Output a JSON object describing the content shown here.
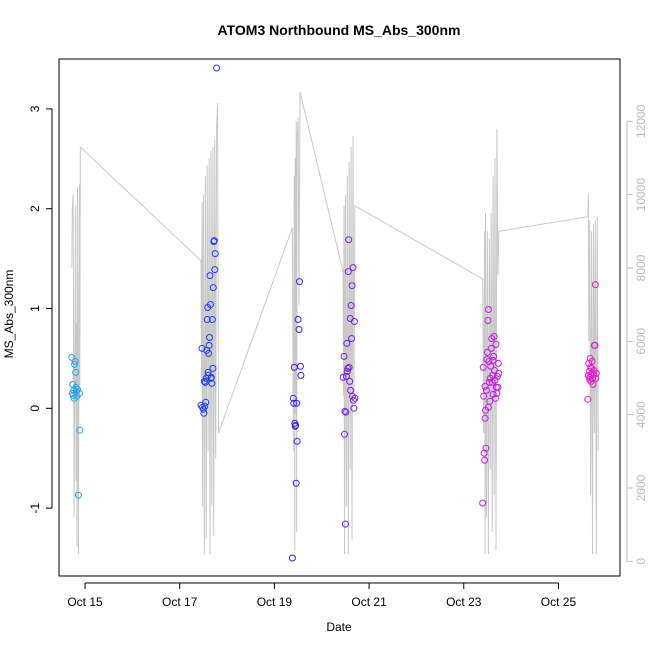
{
  "chart_data": {
    "type": "scatter",
    "title": "ATOM3 Northbound MS_Abs_300nm",
    "xlabel": "Date",
    "ylabel": "MS_Abs_300nm",
    "x_ticks": [
      {
        "day": 15,
        "label": "Oct 15"
      },
      {
        "day": 17,
        "label": "Oct 17"
      },
      {
        "day": 19,
        "label": "Oct 19"
      },
      {
        "day": 21,
        "label": "Oct 21"
      },
      {
        "day": 23,
        "label": "Oct 23"
      },
      {
        "day": 25,
        "label": "Oct 25"
      }
    ],
    "xlim": [
      14.45,
      26.3
    ],
    "ylim": [
      -1.68,
      3.5
    ],
    "y_ticks": [
      -1,
      0,
      1,
      2,
      3
    ],
    "y2_ticks": [
      0,
      2000,
      4000,
      6000,
      8000,
      10000,
      12000
    ],
    "y2lim": [
      -400,
      13700
    ],
    "colors": {
      "axis": "#000000",
      "secondary": "#c8c8c8",
      "secondary_axis": "#bbbbbb"
    },
    "secondary_series": {
      "name": "",
      "style": "line",
      "color": "#c8c8c8",
      "points": [
        [
          14.72,
          8000
        ],
        [
          14.73,
          9600
        ],
        [
          14.75,
          10000
        ],
        [
          14.77,
          1200
        ],
        [
          14.78,
          4500
        ],
        [
          14.8,
          9700
        ],
        [
          14.81,
          2200
        ],
        [
          14.82,
          6500
        ],
        [
          14.83,
          400
        ],
        [
          14.84,
          10200
        ],
        [
          14.85,
          5800
        ],
        [
          14.86,
          200
        ],
        [
          14.88,
          10300
        ],
        [
          14.89,
          4800
        ],
        [
          14.9,
          11300
        ],
        [
          17.45,
          8200
        ],
        [
          17.46,
          5000
        ],
        [
          17.47,
          9800
        ],
        [
          17.48,
          1500
        ],
        [
          17.5,
          10000
        ],
        [
          17.52,
          200
        ],
        [
          17.54,
          10500
        ],
        [
          17.56,
          600
        ],
        [
          17.58,
          10800
        ],
        [
          17.6,
          3000
        ],
        [
          17.62,
          11000
        ],
        [
          17.64,
          200
        ],
        [
          17.66,
          11200
        ],
        [
          17.68,
          1500
        ],
        [
          17.7,
          11300
        ],
        [
          17.72,
          700
        ],
        [
          17.74,
          11500
        ],
        [
          17.76,
          2800
        ],
        [
          17.78,
          11800
        ],
        [
          17.8,
          12500
        ],
        [
          17.82,
          3500
        ],
        [
          19.38,
          9100
        ],
        [
          19.4,
          3000
        ],
        [
          19.42,
          10500
        ],
        [
          19.43,
          300
        ],
        [
          19.44,
          11000
        ],
        [
          19.45,
          4000
        ],
        [
          19.46,
          12000
        ],
        [
          19.47,
          800
        ],
        [
          19.48,
          11500
        ],
        [
          19.5,
          12100
        ],
        [
          19.52,
          7000
        ],
        [
          19.54,
          12800
        ],
        [
          20.45,
          7900
        ],
        [
          20.46,
          4500
        ],
        [
          20.47,
          9700
        ],
        [
          20.48,
          200
        ],
        [
          20.5,
          10000
        ],
        [
          20.52,
          1500
        ],
        [
          20.54,
          10500
        ],
        [
          20.56,
          200
        ],
        [
          20.58,
          10900
        ],
        [
          20.6,
          2500
        ],
        [
          20.62,
          11300
        ],
        [
          20.64,
          600
        ],
        [
          20.66,
          11600
        ],
        [
          20.68,
          4500
        ],
        [
          20.7,
          9700
        ],
        [
          23.4,
          7700
        ],
        [
          23.42,
          3500
        ],
        [
          23.44,
          9000
        ],
        [
          23.45,
          200
        ],
        [
          23.46,
          9500
        ],
        [
          23.48,
          1200
        ],
        [
          23.5,
          9000
        ],
        [
          23.52,
          200
        ],
        [
          23.54,
          8800
        ],
        [
          23.56,
          2500
        ],
        [
          23.58,
          9500
        ],
        [
          23.6,
          800
        ],
        [
          23.62,
          10500
        ],
        [
          23.64,
          1800
        ],
        [
          23.66,
          11000
        ],
        [
          23.68,
          300
        ],
        [
          23.7,
          11800
        ],
        [
          23.72,
          7800
        ],
        [
          23.74,
          9000
        ],
        [
          25.62,
          9400
        ],
        [
          25.63,
          10000
        ],
        [
          25.64,
          6000
        ],
        [
          25.66,
          9300
        ],
        [
          25.68,
          1800
        ],
        [
          25.7,
          9000
        ],
        [
          25.72,
          200
        ],
        [
          25.74,
          9200
        ],
        [
          25.76,
          3500
        ],
        [
          25.78,
          9300
        ],
        [
          25.8,
          200
        ],
        [
          25.82,
          9400
        ],
        [
          25.84,
          3000
        ]
      ]
    },
    "series": [
      {
        "color": "#29a3e8",
        "points": [
          [
            14.72,
            0.51
          ],
          [
            14.73,
            0.15
          ],
          [
            14.74,
            0.24
          ],
          [
            14.75,
            0.13
          ],
          [
            14.76,
            0.18
          ],
          [
            14.77,
            0.1
          ],
          [
            14.78,
            0.44
          ],
          [
            14.79,
            0.47
          ],
          [
            14.8,
            0.36
          ],
          [
            14.81,
            0.21
          ],
          [
            14.82,
            0.17
          ],
          [
            14.83,
            0.12
          ],
          [
            14.84,
            0.19
          ],
          [
            14.86,
            -0.87
          ],
          [
            14.89,
            -0.22
          ],
          [
            14.88,
            0.15
          ]
        ]
      },
      {
        "color": "#2340e6",
        "points": [
          [
            17.45,
            0.03
          ],
          [
            17.47,
            0.6
          ],
          [
            17.48,
            0.01
          ],
          [
            17.5,
            -0.01
          ],
          [
            17.51,
            -0.05
          ],
          [
            17.52,
            0.27
          ],
          [
            17.53,
            0.02
          ],
          [
            17.54,
            0.26
          ],
          [
            17.55,
            0.06
          ],
          [
            17.57,
            0.58
          ],
          [
            17.58,
            0.89
          ],
          [
            17.59,
            1.01
          ],
          [
            17.6,
            0.33
          ],
          [
            17.61,
            0.55
          ],
          [
            17.62,
            0.63
          ],
          [
            17.63,
            0.71
          ],
          [
            17.64,
            1.33
          ],
          [
            17.65,
            1.04
          ],
          [
            17.66,
            0.3
          ],
          [
            17.67,
            0.31
          ],
          [
            17.68,
            0.25
          ],
          [
            17.69,
            0.89
          ],
          [
            17.7,
            0.4
          ],
          [
            17.71,
            1.21
          ],
          [
            17.72,
            1.67
          ],
          [
            17.73,
            1.68
          ],
          [
            17.74,
            1.39
          ],
          [
            17.75,
            1.55
          ],
          [
            17.78,
            3.41
          ],
          [
            17.6,
            0.36
          ],
          [
            17.56,
            0.3
          ]
        ]
      },
      {
        "color": "#3a22e0",
        "points": [
          [
            19.38,
            -1.5
          ],
          [
            19.4,
            0.1
          ],
          [
            19.41,
            0.05
          ],
          [
            19.42,
            0.41
          ],
          [
            19.43,
            -0.15
          ],
          [
            19.44,
            -0.18
          ],
          [
            19.45,
            -0.17
          ],
          [
            19.46,
            -0.75
          ],
          [
            19.47,
            0.05
          ],
          [
            19.48,
            -0.33
          ],
          [
            19.5,
            0.89
          ],
          [
            19.52,
            0.79
          ],
          [
            19.53,
            1.27
          ],
          [
            19.55,
            0.42
          ],
          [
            19.56,
            0.33
          ]
        ]
      },
      {
        "color": "#7a22dc",
        "points": [
          [
            20.45,
            0.31
          ],
          [
            20.47,
            0.52
          ],
          [
            20.48,
            -0.26
          ],
          [
            20.49,
            -0.03
          ],
          [
            20.5,
            -1.16
          ],
          [
            20.51,
            -0.04
          ],
          [
            20.52,
            0.32
          ],
          [
            20.53,
            0.65
          ],
          [
            20.54,
            0.37
          ],
          [
            20.55,
            0.4
          ],
          [
            20.56,
            1.37
          ],
          [
            20.57,
            1.69
          ],
          [
            20.58,
            0.41
          ],
          [
            20.59,
            0.27
          ],
          [
            20.6,
            0.9
          ],
          [
            20.61,
            0.18
          ],
          [
            20.62,
            1.03
          ],
          [
            20.63,
            0.7
          ],
          [
            20.64,
            1.23
          ],
          [
            20.65,
            0.12
          ],
          [
            20.66,
            1.41
          ],
          [
            20.67,
            0.08
          ],
          [
            20.68,
            0.0
          ],
          [
            20.69,
            0.87
          ],
          [
            20.7,
            0.1
          ]
        ]
      },
      {
        "color": "#c21ee0",
        "points": [
          [
            23.4,
            -0.95
          ],
          [
            23.41,
            0.41
          ],
          [
            23.42,
            0.12
          ],
          [
            23.43,
            -0.45
          ],
          [
            23.44,
            -0.52
          ],
          [
            23.45,
            -0.1
          ],
          [
            23.46,
            -0.02
          ],
          [
            23.47,
            -0.4
          ],
          [
            23.48,
            0.18
          ],
          [
            23.49,
            0.49
          ],
          [
            23.5,
            0.56
          ],
          [
            23.51,
            0.88
          ],
          [
            23.52,
            0.99
          ],
          [
            23.53,
            0.47
          ],
          [
            23.54,
            0.26
          ],
          [
            23.55,
            0.07
          ],
          [
            23.56,
            0.3
          ],
          [
            23.57,
            0.42
          ],
          [
            23.58,
            0.6
          ],
          [
            23.59,
            0.7
          ],
          [
            23.6,
            0.26
          ],
          [
            23.61,
            0.33
          ],
          [
            23.62,
            0.14
          ],
          [
            23.63,
            0.52
          ],
          [
            23.64,
            0.72
          ],
          [
            23.65,
            0.38
          ],
          [
            23.66,
            0.28
          ],
          [
            23.67,
            0.1
          ],
          [
            23.68,
            0.64
          ],
          [
            23.69,
            0.21
          ],
          [
            23.7,
            0.15
          ],
          [
            23.71,
            0.32
          ],
          [
            23.72,
            0.21
          ],
          [
            23.73,
            0.45
          ],
          [
            23.74,
            0.35
          ],
          [
            23.45,
            0.22
          ],
          [
            23.52,
            0.01
          ],
          [
            23.62,
            0.48
          ]
        ]
      },
      {
        "color": "#e21ecf",
        "points": [
          [
            25.62,
            0.09
          ],
          [
            25.63,
            0.33
          ],
          [
            25.64,
            0.45
          ],
          [
            25.65,
            0.37
          ],
          [
            25.66,
            0.29
          ],
          [
            25.67,
            0.5
          ],
          [
            25.68,
            0.41
          ],
          [
            25.69,
            0.27
          ],
          [
            25.7,
            0.34
          ],
          [
            25.71,
            0.47
          ],
          [
            25.72,
            0.3
          ],
          [
            25.73,
            0.24
          ],
          [
            25.74,
            0.34
          ],
          [
            25.75,
            0.38
          ],
          [
            25.76,
            0.63
          ],
          [
            25.77,
            0.63
          ],
          [
            25.78,
            1.24
          ],
          [
            25.79,
            0.3
          ],
          [
            25.8,
            0.35
          ],
          [
            25.66,
            0.31
          ],
          [
            25.7,
            0.4
          ]
        ]
      }
    ]
  }
}
